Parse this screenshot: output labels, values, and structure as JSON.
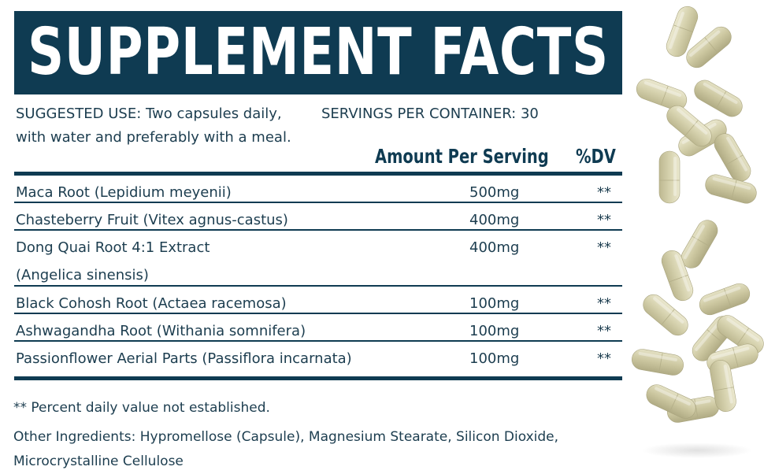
{
  "header": {
    "title": "SUPPLEMENT FACTS"
  },
  "meta": {
    "suggested_use": "SUGGESTED USE: Two capsules daily, with water and preferably with a meal.",
    "servings": "SERVINGS PER CONTAINER: 30"
  },
  "columns": {
    "amount": "Amount Per Serving",
    "dv": "%DV"
  },
  "rows": [
    {
      "name": "Maca Root (Lepidium meyenii)",
      "amount": "500mg",
      "dv": "**"
    },
    {
      "name": "Chasteberry Fruit (Vitex agnus-castus)",
      "amount": "400mg",
      "dv": "**"
    },
    {
      "name_line1": "Dong Quai Root 4:1 Extract",
      "name_line2": "(Angelica sinensis)",
      "amount": "400mg",
      "dv": "**"
    },
    {
      "name": "Black Cohosh Root (Actaea racemosa)",
      "amount": "100mg",
      "dv": "**"
    },
    {
      "name": "Ashwagandha Root (Withania somnifera)",
      "amount": "100mg",
      "dv": "**"
    },
    {
      "name": "Passionflower Aerial Parts (Passiflora incarnata)",
      "amount": "100mg",
      "dv": "**"
    }
  ],
  "footnotes": {
    "dv_note": "** Percent daily value not established.",
    "other_ingredients": "Other Ingredients: Hypromellose (Capsule), Magnesium Stearate, Silicon Dioxide, Microcrystalline Cellulose"
  },
  "colors": {
    "navy": "#0f3b52",
    "text": "#1c3d4f",
    "capsule": "#d9d5b4"
  },
  "decor": {
    "image": "capsules-icon"
  }
}
